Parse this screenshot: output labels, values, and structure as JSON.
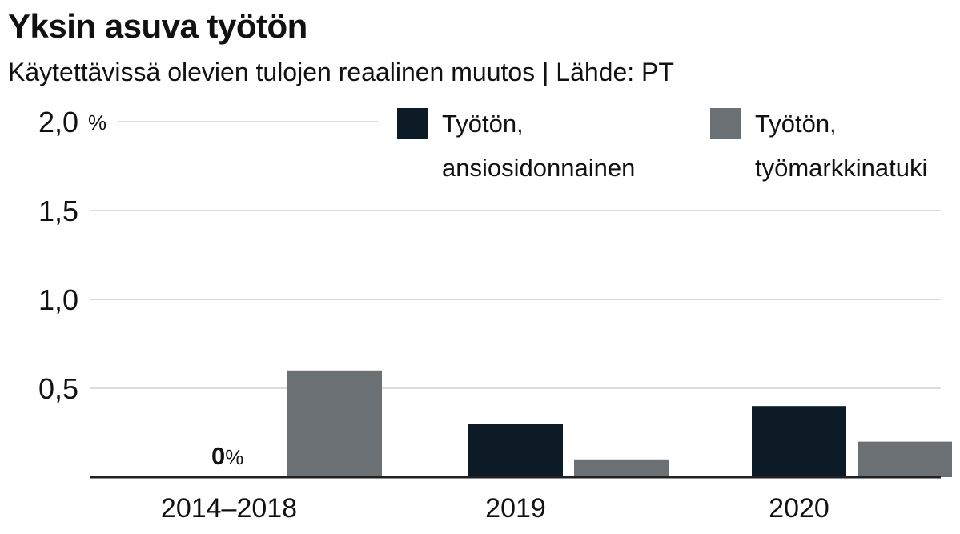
{
  "title": "Yksin asuva työtön",
  "subtitle": "Käytettävissä olevien tulojen reaalinen muutos |  Lähde: PT",
  "chart_data": {
    "type": "bar",
    "categories": [
      "2014–2018",
      "2019",
      "2020"
    ],
    "series": [
      {
        "name": "Työtön, ansiosidonnainen",
        "name_lines": [
          "Työtön,",
          "ansiosidonnainen"
        ],
        "color": "#0d1b26",
        "values": [
          0,
          0.3,
          0.4
        ]
      },
      {
        "name": "Työtön, työmarkkinatuki",
        "name_lines": [
          "Työtön,",
          "työmarkkinatuki"
        ],
        "color": "#6b7075",
        "values": [
          0.6,
          0.1,
          0.2
        ]
      }
    ],
    "ylim": [
      0,
      2.0
    ],
    "yticks": [
      {
        "value": 2.0,
        "label": "2,0",
        "unit": "%"
      },
      {
        "value": 1.5,
        "label": "1,5"
      },
      {
        "value": 1.0,
        "label": "1,0"
      },
      {
        "value": 0.5,
        "label": "0,5"
      }
    ],
    "annotations": [
      {
        "category": "2014–2018",
        "series": 0,
        "value": "0",
        "unit": "%"
      }
    ],
    "grid": true,
    "legend": "top-right"
  }
}
